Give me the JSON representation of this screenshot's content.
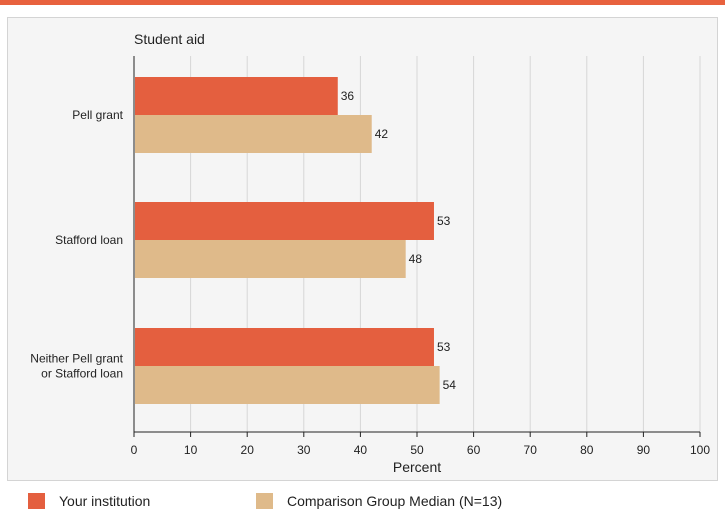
{
  "colors": {
    "top_rule": "#e8623e",
    "panel_background": "#f5f5f5",
    "gridline": "#d6d6d6",
    "text": "#222222"
  },
  "chart_data": {
    "type": "bar",
    "orientation": "horizontal",
    "title": "Student aid",
    "xlabel": "Percent",
    "ylabel": "",
    "xlim": [
      0,
      100
    ],
    "x_ticks": [
      0,
      10,
      20,
      30,
      40,
      50,
      60,
      70,
      80,
      90,
      100
    ],
    "grid": "vertical",
    "legend_position": "bottom",
    "categories": [
      [
        "Pell grant"
      ],
      [
        "Stafford loan"
      ],
      [
        "Neither Pell grant",
        "or Stafford loan"
      ]
    ],
    "series": [
      {
        "name": "Your institution",
        "color": "#e45f3f",
        "values": [
          36,
          53,
          53
        ]
      },
      {
        "name": "Comparison Group Median (N=13)",
        "color": "#dfba8a",
        "values": [
          42,
          48,
          54
        ]
      }
    ]
  }
}
